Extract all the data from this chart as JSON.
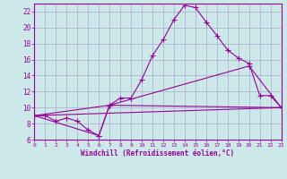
{
  "background_color": "#cce8e8",
  "grid_color": "#aaaacc",
  "line_color": "#990099",
  "xlabel": "Windchill (Refroidissement éolien,°C)",
  "xlim": [
    0,
    23
  ],
  "ylim": [
    6,
    23
  ],
  "yticks": [
    6,
    8,
    10,
    12,
    14,
    16,
    18,
    20,
    22
  ],
  "xticks": [
    0,
    1,
    2,
    3,
    4,
    5,
    6,
    7,
    8,
    9,
    10,
    11,
    12,
    13,
    14,
    15,
    16,
    17,
    18,
    19,
    20,
    21,
    22,
    23
  ],
  "lines": [
    {
      "x": [
        0,
        1,
        2,
        3,
        4,
        5,
        6,
        7,
        8,
        9,
        10,
        11,
        12,
        13,
        14,
        15,
        16,
        17,
        18,
        19,
        20,
        21,
        22,
        23
      ],
      "y": [
        9,
        9,
        8.3,
        8.7,
        8.3,
        7.2,
        6.5,
        10.3,
        11.2,
        11.2,
        13.5,
        16.5,
        18.5,
        21.0,
        22.8,
        22.5,
        20.7,
        19.0,
        17.2,
        16.2,
        15.5,
        11.5,
        11.5,
        10.0
      ]
    },
    {
      "x": [
        0,
        6,
        7,
        23
      ],
      "y": [
        9,
        6.5,
        10.3,
        10.0
      ]
    },
    {
      "x": [
        0,
        7,
        20,
        23
      ],
      "y": [
        9,
        10.3,
        15.2,
        10.0
      ]
    },
    {
      "x": [
        0,
        23
      ],
      "y": [
        9,
        10.0
      ]
    }
  ]
}
